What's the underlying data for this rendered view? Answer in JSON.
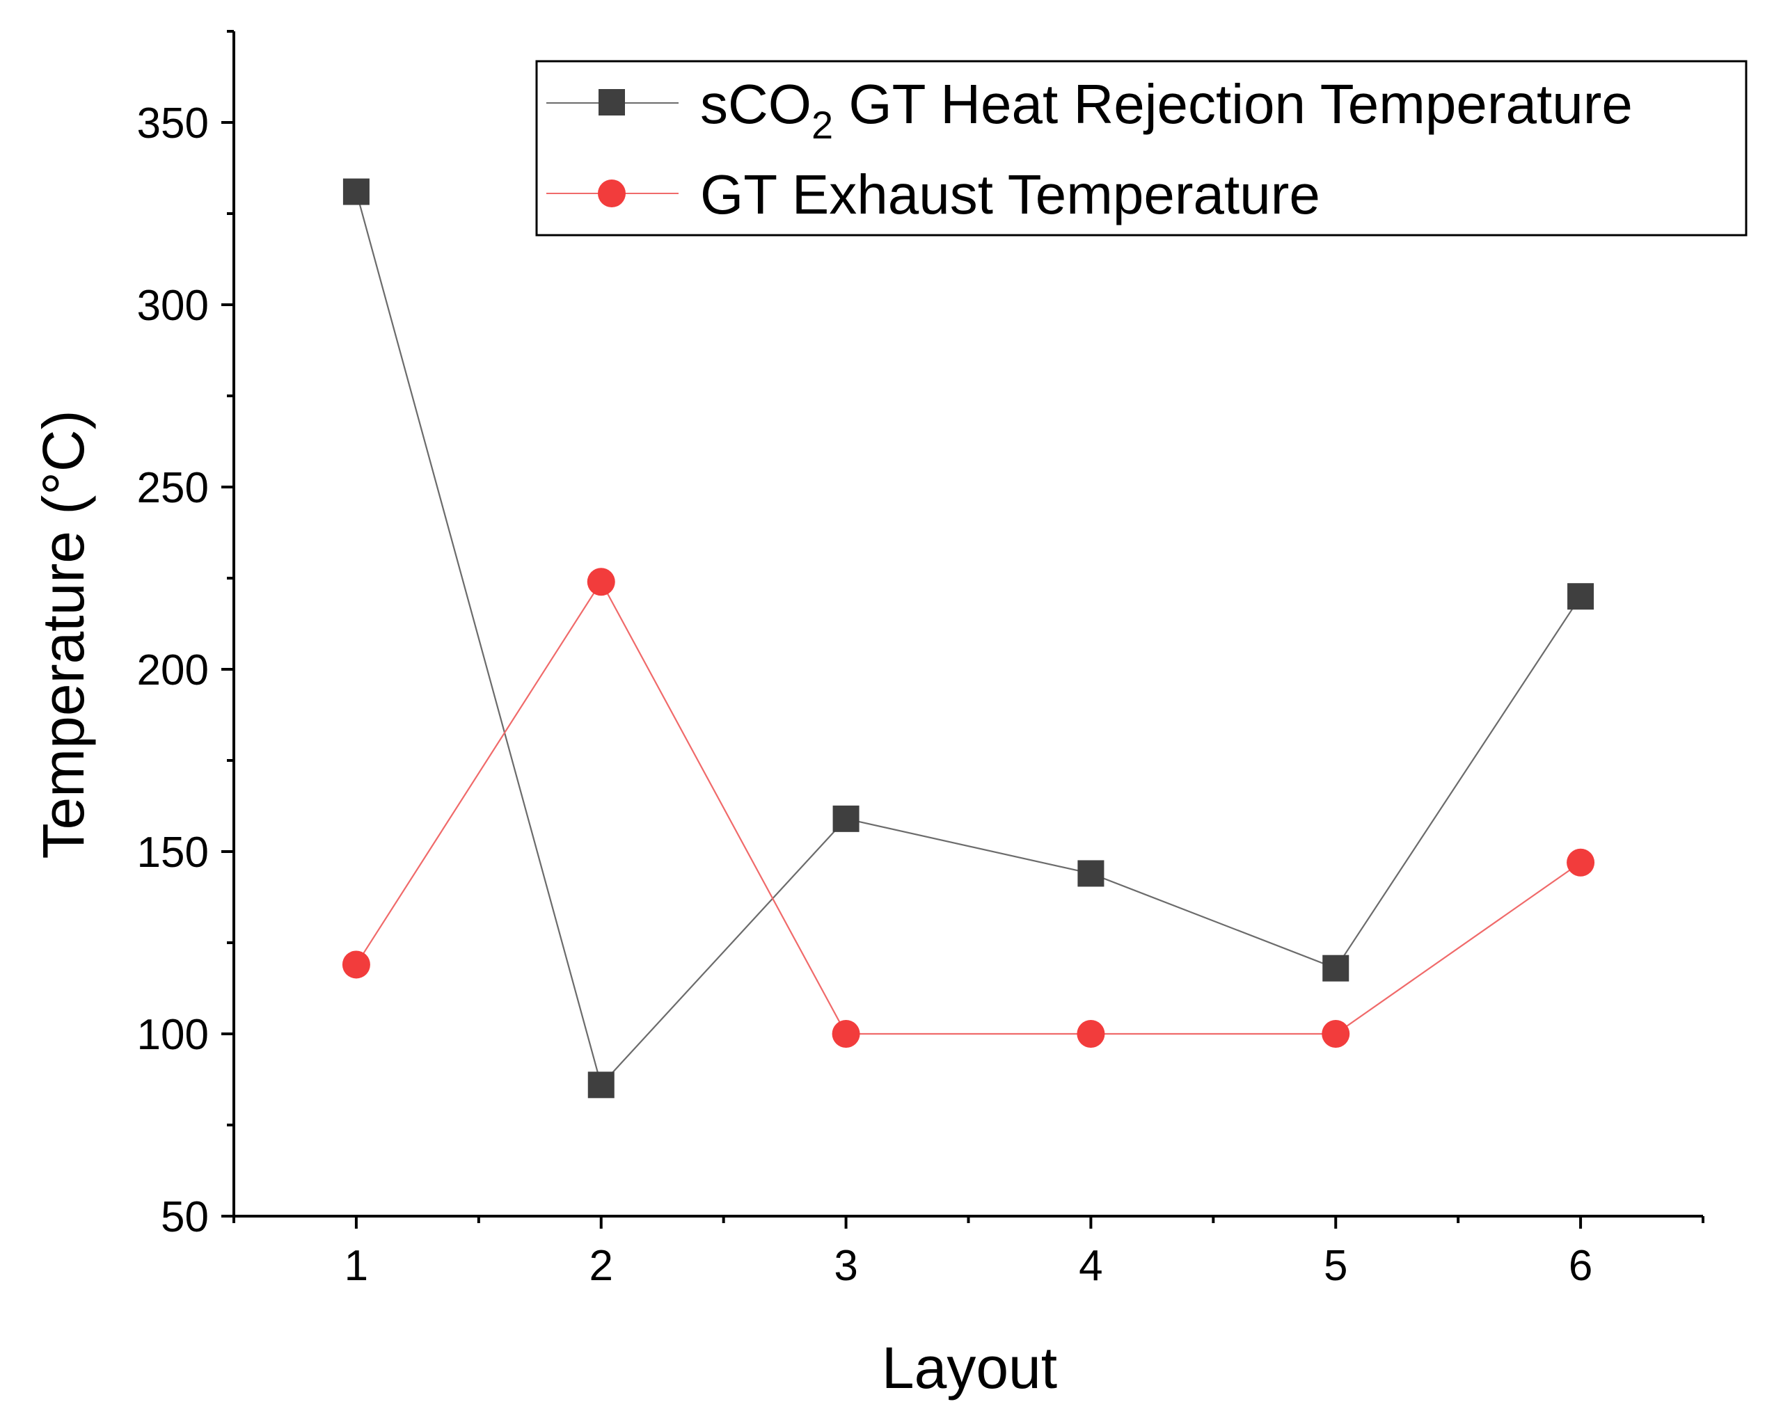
{
  "chart_data": {
    "type": "line",
    "title": "",
    "xlabel": "Layout",
    "ylabel": "Temperature (°C)",
    "x": [
      1,
      2,
      3,
      4,
      5,
      6
    ],
    "xlim": [
      0.5,
      6.5
    ],
    "ylim": [
      50,
      375
    ],
    "xticks": [
      1,
      2,
      3,
      4,
      5,
      6
    ],
    "yticks": [
      50,
      100,
      150,
      200,
      250,
      300,
      350
    ],
    "grid": false,
    "legend_position": "top-right",
    "series": [
      {
        "name": "sCO2 GT Heat Rejection Temperature",
        "name_prefix": "sCO",
        "name_subscript": "2",
        "name_suffix": " GT Heat Rejection Temperature",
        "marker": "square",
        "color": "#3f3f3f",
        "line_color": "#6b6b6b",
        "values": [
          331,
          86,
          159,
          144,
          118,
          220
        ]
      },
      {
        "name": "GT Exhaust Temperature",
        "marker": "circle",
        "color": "#f23c3c",
        "line_color": "#f06a6a",
        "values": [
          119,
          224,
          100,
          100,
          100,
          147
        ]
      }
    ]
  }
}
